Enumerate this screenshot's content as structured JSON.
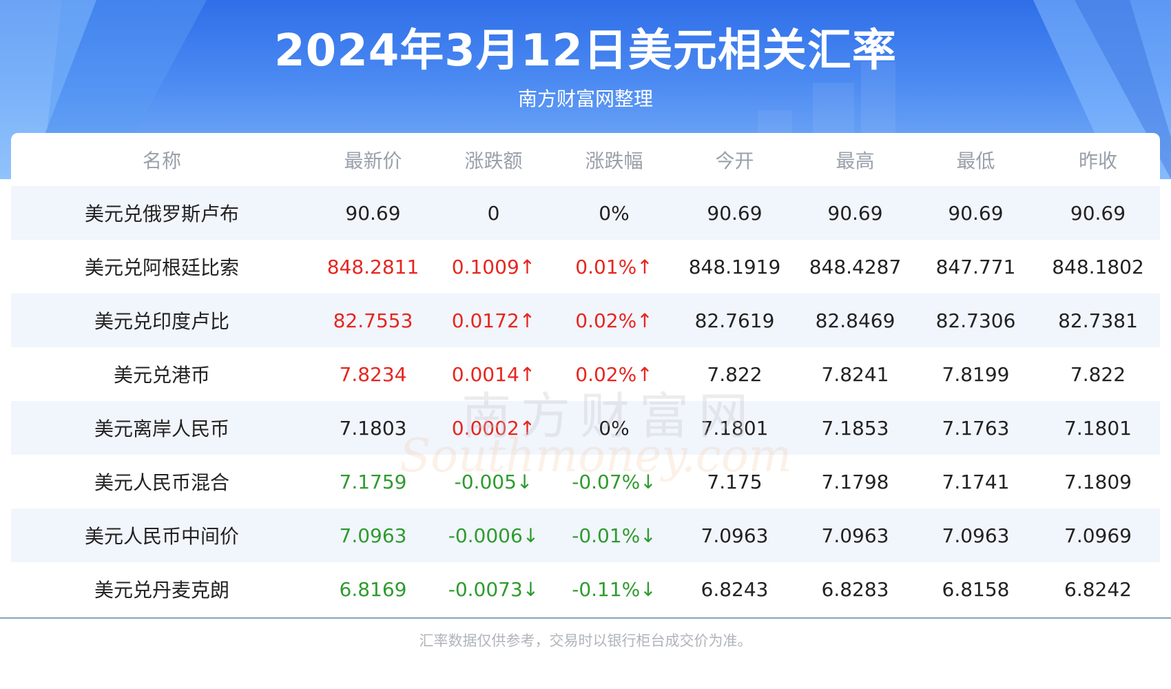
{
  "header": {
    "title": "2024年3月12日美元相关汇率",
    "subtitle": "南方财富网整理"
  },
  "table": {
    "columns": [
      "名称",
      "最新价",
      "涨跌额",
      "涨跌幅",
      "今开",
      "最高",
      "最低",
      "昨收"
    ],
    "rows": [
      {
        "name": "美元兑俄罗斯卢布",
        "latest": "90.69",
        "change": "0",
        "pct": "0%",
        "open": "90.69",
        "high": "90.69",
        "low": "90.69",
        "prev": "90.69",
        "trend": "flat"
      },
      {
        "name": "美元兑阿根廷比索",
        "latest": "848.2811",
        "change": "0.1009↑",
        "pct": "0.01%↑",
        "open": "848.1919",
        "high": "848.4287",
        "low": "847.771",
        "prev": "848.1802",
        "trend": "up"
      },
      {
        "name": "美元兑印度卢比",
        "latest": "82.7553",
        "change": "0.0172↑",
        "pct": "0.02%↑",
        "open": "82.7619",
        "high": "82.8469",
        "low": "82.7306",
        "prev": "82.7381",
        "trend": "up"
      },
      {
        "name": "美元兑港币",
        "latest": "7.8234",
        "change": "0.0014↑",
        "pct": "0.02%↑",
        "open": "7.822",
        "high": "7.8241",
        "low": "7.8199",
        "prev": "7.822",
        "trend": "up"
      },
      {
        "name": "美元离岸人民币",
        "latest": "7.1803",
        "change": "0.0002↑",
        "pct": "0%",
        "open": "7.1801",
        "high": "7.1853",
        "low": "7.1763",
        "prev": "7.1801",
        "trend": "up-change-only"
      },
      {
        "name": "美元人民币混合",
        "latest": "7.1759",
        "change": "-0.005↓",
        "pct": "-0.07%↓",
        "open": "7.175",
        "high": "7.1798",
        "low": "7.1741",
        "prev": "7.1809",
        "trend": "down"
      },
      {
        "name": "美元人民币中间价",
        "latest": "7.0963",
        "change": "-0.0006↓",
        "pct": "-0.01%↓",
        "open": "7.0963",
        "high": "7.0963",
        "low": "7.0963",
        "prev": "7.0969",
        "trend": "down"
      },
      {
        "name": "美元兑丹麦克朗",
        "latest": "6.8169",
        "change": "-0.0073↓",
        "pct": "-0.11%↓",
        "open": "6.8243",
        "high": "6.8283",
        "low": "6.8158",
        "prev": "6.8242",
        "trend": "down"
      }
    ]
  },
  "watermark": {
    "cn": "南方财富网",
    "en": "Southmoney.com"
  },
  "footer": "汇率数据仅供参考，交易时以银行柜台成交价为准。",
  "colors": {
    "up": "#e6261f",
    "down": "#2e9b2e",
    "header": "#3a7aee",
    "row_alt": "#f1f5fc"
  }
}
